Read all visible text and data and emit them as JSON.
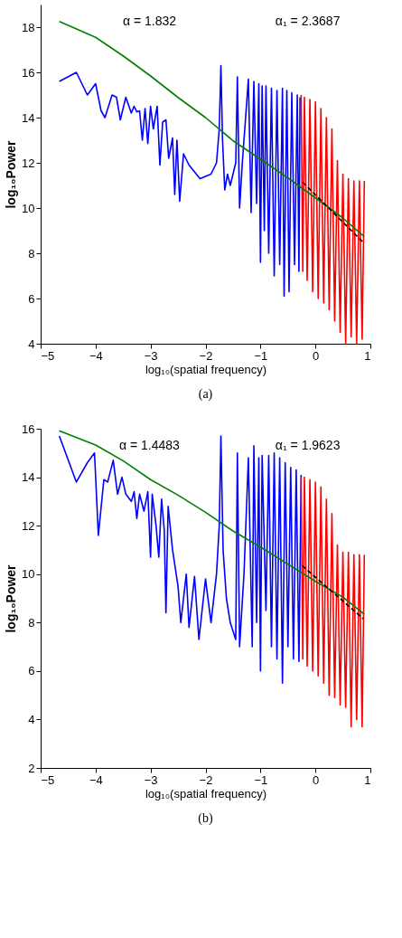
{
  "chart_data": [
    {
      "type": "line",
      "xlabel": "log₁₀(spatial frequency)",
      "ylabel": "log₁₀Power",
      "xlim": [
        -5,
        1
      ],
      "ylim": [
        4,
        19
      ],
      "xticks": [
        -5,
        -4,
        -3,
        -2,
        -1,
        0,
        1
      ],
      "yticks": [
        4,
        6,
        8,
        10,
        12,
        14,
        16,
        18
      ],
      "grid": false,
      "marker": "none",
      "title": "(a)",
      "annotations": [
        "α = 1.832",
        "α₁ = 2.3687"
      ],
      "series": [
        {
          "color": "#0000ff",
          "x": [
            -4.66,
            -4.35,
            -4.15,
            -4.0,
            -3.9,
            -3.83,
            -3.7,
            -3.62,
            -3.55,
            -3.45,
            -3.35,
            -3.3,
            -3.25,
            -3.2,
            -3.15,
            -3.1,
            -3.05,
            -3.0,
            -2.95,
            -2.88,
            -2.83,
            -2.78,
            -2.72,
            -2.67,
            -2.6,
            -2.56,
            -2.52,
            -2.47,
            -2.4,
            -2.3,
            -2.2,
            -2.1,
            -2.0,
            -1.9,
            -1.8,
            -1.75,
            -1.72,
            -1.69,
            -1.65,
            -1.6,
            -1.55,
            -1.45,
            -1.42,
            -1.38,
            -1.33,
            -1.22,
            -1.17,
            -1.12,
            -1.07,
            -1.03,
            -1.0,
            -0.97,
            -0.93,
            -0.9,
            -0.85,
            -0.8,
            -0.75,
            -0.7,
            -0.65,
            -0.6,
            -0.57,
            -0.52,
            -0.48,
            -0.43,
            -0.38,
            -0.33,
            -0.3,
            -0.28
          ],
          "values": [
            15.6,
            16.0,
            15.0,
            15.5,
            14.3,
            14.0,
            15.0,
            14.9,
            13.9,
            14.9,
            14.2,
            14.5,
            14.25,
            14.3,
            13.0,
            14.4,
            12.85,
            14.5,
            13.5,
            14.5,
            11.9,
            13.8,
            13.9,
            12.2,
            13.1,
            10.6,
            13.0,
            10.3,
            12.4,
            11.9,
            11.6,
            11.3,
            11.4,
            11.5,
            12.0,
            13.5,
            16.3,
            13.0,
            10.8,
            11.5,
            11.0,
            12.0,
            15.8,
            10.0,
            12.0,
            15.7,
            9.8,
            15.6,
            10.2,
            15.5,
            7.6,
            15.4,
            9.0,
            15.4,
            8.0,
            15.3,
            7.0,
            15.2,
            7.5,
            15.3,
            6.1,
            15.2,
            6.3,
            15.1,
            7.5,
            15.0,
            7.2,
            14.9
          ]
        },
        {
          "color": "#ff0000",
          "x": [
            -0.26,
            -0.23,
            -0.2,
            -0.15,
            -0.1,
            -0.05,
            0.0,
            0.05,
            0.1,
            0.15,
            0.2,
            0.25,
            0.3,
            0.35,
            0.4,
            0.45,
            0.5,
            0.55,
            0.6,
            0.65,
            0.7,
            0.75,
            0.8,
            0.85,
            0.89
          ],
          "values": [
            15.0,
            7.2,
            14.9,
            6.8,
            14.8,
            6.3,
            14.7,
            6.0,
            14.4,
            5.8,
            14.0,
            5.5,
            13.5,
            5.0,
            12.1,
            4.5,
            11.5,
            4.0,
            11.3,
            4.3,
            11.2,
            4.0,
            11.2,
            4.2,
            11.2
          ]
        },
        {
          "color": "#007f00",
          "x": [
            -4.66,
            -4.0,
            -3.5,
            -3.0,
            -2.5,
            -2.0,
            -1.5,
            -1.0,
            -0.5,
            0.0,
            0.5,
            0.89
          ],
          "values": [
            18.25,
            17.55,
            16.73,
            15.84,
            14.89,
            14.0,
            12.98,
            12.16,
            11.33,
            10.45,
            9.56,
            8.73
          ]
        },
        {
          "color": "#000000",
          "line_style": "dashed",
          "x": [
            -0.23,
            0.87
          ],
          "values": [
            11.14,
            8.48
          ]
        }
      ]
    },
    {
      "type": "line",
      "xlabel": "log₁₀(spatial frequency)",
      "ylabel": "log₁₀Power",
      "xlim": [
        -5,
        1
      ],
      "ylim": [
        2,
        16
      ],
      "xticks": [
        -5,
        -4,
        -3,
        -2,
        -1,
        0,
        1
      ],
      "yticks": [
        2,
        4,
        6,
        8,
        10,
        12,
        14,
        16
      ],
      "grid": false,
      "marker": "none",
      "title": "(b)",
      "annotations": [
        "α = 1.4483",
        "α₁ = 1.9623"
      ],
      "series": [
        {
          "color": "#0000ff",
          "x": [
            -4.66,
            -4.35,
            -4.15,
            -4.02,
            -3.95,
            -3.85,
            -3.78,
            -3.68,
            -3.6,
            -3.52,
            -3.45,
            -3.35,
            -3.3,
            -3.25,
            -3.2,
            -3.12,
            -3.05,
            -3.0,
            -2.97,
            -2.9,
            -2.85,
            -2.8,
            -2.75,
            -2.72,
            -2.68,
            -2.6,
            -2.5,
            -2.45,
            -2.35,
            -2.3,
            -2.2,
            -2.12,
            -2.0,
            -1.9,
            -1.8,
            -1.75,
            -1.72,
            -1.68,
            -1.62,
            -1.55,
            -1.45,
            -1.42,
            -1.38,
            -1.3,
            -1.22,
            -1.15,
            -1.12,
            -1.07,
            -1.03,
            -1.0,
            -0.97,
            -0.9,
            -0.85,
            -0.8,
            -0.75,
            -0.7,
            -0.65,
            -0.6,
            -0.55,
            -0.5,
            -0.45,
            -0.4,
            -0.35,
            -0.3,
            -0.26
          ],
          "values": [
            15.7,
            13.8,
            14.6,
            15.0,
            11.6,
            13.9,
            13.8,
            14.7,
            13.3,
            14.0,
            13.3,
            13.0,
            13.4,
            12.3,
            13.3,
            12.6,
            13.4,
            10.7,
            13.3,
            12.0,
            10.7,
            13.1,
            11.8,
            8.4,
            12.8,
            11.0,
            9.5,
            8.0,
            10.0,
            7.8,
            9.9,
            7.3,
            9.8,
            8.0,
            10.0,
            12.0,
            15.7,
            11.0,
            9.0,
            8.0,
            7.3,
            15.0,
            7.0,
            10.0,
            14.8,
            7.0,
            15.3,
            8.0,
            14.8,
            6.0,
            14.9,
            8.5,
            14.9,
            7.0,
            15.0,
            6.5,
            14.8,
            5.5,
            14.6,
            7.0,
            14.4,
            6.5,
            14.3,
            6.4,
            14.1
          ]
        },
        {
          "color": "#ff0000",
          "x": [
            -0.26,
            -0.23,
            -0.2,
            -0.15,
            -0.1,
            -0.05,
            0.0,
            0.05,
            0.1,
            0.15,
            0.2,
            0.25,
            0.3,
            0.35,
            0.4,
            0.45,
            0.5,
            0.55,
            0.6,
            0.65,
            0.7,
            0.75,
            0.8,
            0.85,
            0.89
          ],
          "values": [
            14.0,
            6.5,
            14.0,
            6.2,
            13.9,
            6.0,
            13.8,
            5.8,
            13.6,
            5.5,
            13.1,
            5.0,
            12.5,
            4.9,
            11.2,
            4.6,
            10.9,
            4.5,
            10.9,
            3.7,
            10.8,
            4.0,
            10.8,
            3.7,
            10.8
          ]
        },
        {
          "color": "#007f00",
          "x": [
            -4.66,
            -4.0,
            -3.5,
            -3.0,
            -2.5,
            -2.0,
            -1.5,
            -1.0,
            -0.5,
            0.0,
            0.5,
            0.89
          ],
          "values": [
            15.92,
            15.33,
            14.68,
            13.9,
            13.26,
            12.55,
            11.78,
            11.12,
            10.41,
            9.7,
            9.05,
            8.34
          ]
        },
        {
          "color": "#000000",
          "line_style": "dashed",
          "x": [
            -0.24,
            0.87
          ],
          "values": [
            10.35,
            8.16
          ]
        }
      ]
    }
  ]
}
